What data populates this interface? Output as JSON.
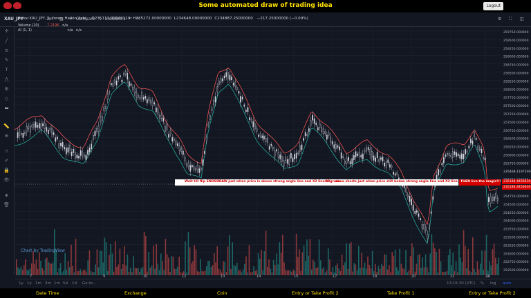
{
  "header": {
    "title": "Some automated draw of trading idea",
    "logout_label": "Logout"
  },
  "toolbar": {
    "symbol": "XAU_JPY",
    "interval": "1m",
    "compare": "Compare",
    "indicators": "Indicators"
  },
  "legend": {
    "line1": "forex:XAU_JPY, 1, forex, Heikin Ashi",
    "open": "O235112.99646119",
    "high": "H235272.00000000",
    "low": "L234648.00000000",
    "close": "C234887.25000000",
    "change": "−217.25000000 (−0.09%)",
    "volume": "Volume (20)",
    "volume_val": "7.219K",
    "volume_na": "n/a",
    "ai": "AI (1, 1)",
    "ai_na1": "n/a",
    "ai_na2": "n/a"
  },
  "banner": {
    "t1": "Wait till flip ENDS !",
    "t2": "DRAW just when price is above strong angle line and X2 line is green",
    "t3": "OR",
    "t4": "draw shorts just when price still below strong angle line and X2 line is red",
    "t5": "THEN live the magic!!!"
  },
  "price_labels": {
    "current": "235468.11975000",
    "a": "235184.44566301",
    "b": "235184.44566301"
  },
  "y_axis": [
    "259750.000000",
    "259500.000000",
    "259250.000000",
    "259000.000000",
    "258750.000000",
    "258500.000000",
    "258250.000000",
    "258000.000000",
    "257750.000000",
    "257500.000000",
    "257250.000000",
    "257000.000000",
    "256750.000000",
    "256500.000000",
    "256250.000000",
    "256000.000000",
    "255750.000000",
    "255500.000000",
    "255250.000000",
    "255000.000000",
    "254750.000000",
    "254500.000000",
    "254250.000000",
    "254000.000000",
    "253750.000000",
    "253500.000000",
    "253250.000000",
    "253000.000000",
    "252750.000000",
    "252500.000000",
    "252250.000000"
  ],
  "x_axis": [
    "7",
    "9",
    "10",
    "12",
    "13",
    "14",
    "15",
    "17",
    "18",
    "20",
    "21",
    "22",
    "24"
  ],
  "bottom": {
    "ranges": [
      "1y",
      "1y",
      "1m",
      "3m",
      "1m",
      "5d",
      "1d",
      "Go to..."
    ],
    "time": "13:16:30 (UTC)",
    "pct": "%",
    "log": "log",
    "auto": "auto"
  },
  "watermark": "Chart by TradingView",
  "footer": [
    "Date Time",
    "Exchange",
    "Coin",
    "Entry or Take Profit 2",
    "Take Profit 1",
    "Entry or Take Profit 2"
  ],
  "colors": {
    "up": "#d1d4dc",
    "down": "#131722",
    "green": "#26a69a",
    "red": "#ef5350",
    "accent": "#ffe100"
  }
}
